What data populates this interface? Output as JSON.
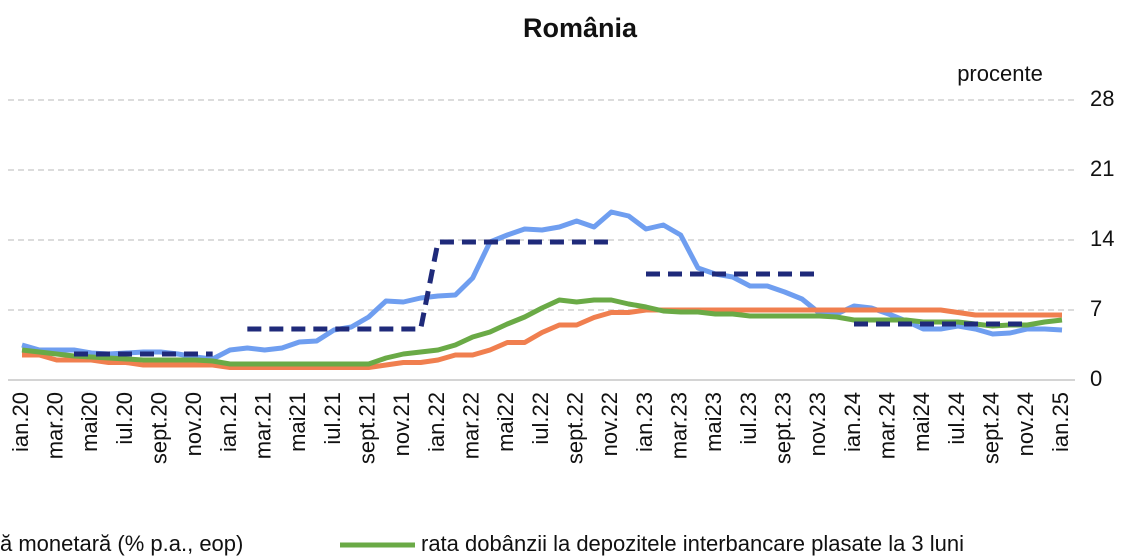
{
  "chart_data": {
    "type": "line",
    "title": "România",
    "unit_label": "procente",
    "categories": [
      "ian.20",
      null,
      "mar.20",
      null,
      "mai20",
      null,
      "iul.20",
      null,
      "sept.20",
      null,
      "nov.20",
      null,
      "ian.21",
      null,
      "mar.21",
      null,
      "mai21",
      null,
      "iul.21",
      null,
      "sept.21",
      null,
      "nov.21",
      null,
      "ian.22",
      null,
      "mar.22",
      null,
      "mai22",
      null,
      "iul.22",
      null,
      "sept.22",
      null,
      "nov.22",
      null,
      "ian.23",
      null,
      "mar.23",
      null,
      "mai23",
      null,
      "iul.23",
      null,
      "sept.23",
      null,
      "nov.23",
      null,
      "ian.24",
      null,
      "mar.24",
      null,
      "mai24",
      null,
      "iul.24",
      null,
      "sept.24",
      null,
      "nov.24",
      null,
      "ian.25"
    ],
    "series": [
      {
        "color": "#6f9ef0",
        "values": [
          3.5,
          3.0,
          3.0,
          3.0,
          2.7,
          2.6,
          2.7,
          2.8,
          2.8,
          2.6,
          2.3,
          2.1,
          3.0,
          3.2,
          3.0,
          3.2,
          3.8,
          3.9,
          5.0,
          5.3,
          6.3,
          7.9,
          7.8,
          8.2,
          8.4,
          8.5,
          10.2,
          13.8,
          14.5,
          15.1,
          15.0,
          15.3,
          15.9,
          15.3,
          16.8,
          16.4,
          15.1,
          15.5,
          14.5,
          11.2,
          10.6,
          10.3,
          9.4,
          9.4,
          8.8,
          8.1,
          6.7,
          6.6,
          7.4,
          7.2,
          6.6,
          5.9,
          5.1,
          5.1,
          5.4,
          5.1,
          4.6,
          4.7,
          5.1,
          5.1,
          5.0
        ]
      },
      {
        "name": "ă monetară (% p.a., eop)",
        "color": "#f07f4f",
        "values": [
          2.5,
          2.5,
          2.0,
          2.0,
          2.0,
          1.75,
          1.75,
          1.5,
          1.5,
          1.5,
          1.5,
          1.5,
          1.25,
          1.25,
          1.25,
          1.25,
          1.25,
          1.25,
          1.25,
          1.25,
          1.25,
          1.5,
          1.75,
          1.75,
          2.0,
          2.5,
          2.5,
          3.0,
          3.75,
          3.75,
          4.75,
          5.5,
          5.5,
          6.25,
          6.75,
          6.75,
          7,
          7,
          7,
          7,
          7,
          7,
          7,
          7,
          7,
          7,
          7,
          7,
          7,
          7,
          7,
          7,
          7,
          7,
          6.75,
          6.5,
          6.5,
          6.5,
          6.5,
          6.5,
          6.5
        ]
      },
      {
        "name": "rata dobânzii la depozitele interbancare plasate la 3 luni",
        "color": "#6aaa46",
        "values": [
          3.0,
          2.8,
          2.6,
          2.4,
          2.3,
          2.2,
          2.1,
          2.0,
          2.0,
          2.0,
          2.0,
          1.9,
          1.6,
          1.6,
          1.6,
          1.6,
          1.6,
          1.6,
          1.6,
          1.6,
          1.6,
          2.2,
          2.6,
          2.8,
          3.0,
          3.5,
          4.3,
          4.8,
          5.6,
          6.3,
          7.2,
          8.0,
          7.8,
          8.0,
          8.0,
          7.6,
          7.3,
          6.9,
          6.8,
          6.8,
          6.6,
          6.6,
          6.4,
          6.4,
          6.4,
          6.4,
          6.4,
          6.3,
          6.0,
          6.0,
          6.0,
          6.0,
          5.8,
          5.8,
          5.8,
          5.6,
          5.4,
          5.5,
          5.5,
          5.8,
          6.0
        ]
      },
      {
        "color": "#1f2a7a",
        "dashed": true,
        "values": [
          null,
          null,
          null,
          2.6,
          2.6,
          2.6,
          2.6,
          2.6,
          2.6,
          2.6,
          2.6,
          2.6,
          null,
          5.1,
          5.1,
          5.1,
          5.1,
          5.1,
          5.1,
          5.1,
          5.1,
          5.1,
          5.1,
          5.1,
          13.8,
          13.8,
          13.8,
          13.8,
          13.8,
          13.8,
          13.8,
          13.8,
          13.8,
          13.8,
          13.8,
          null,
          10.6,
          10.6,
          10.6,
          10.6,
          10.6,
          10.6,
          10.6,
          10.6,
          10.6,
          10.6,
          10.6,
          null,
          5.6,
          5.6,
          5.6,
          5.6,
          5.6,
          5.6,
          5.6,
          5.6,
          5.6,
          5.6,
          5.6,
          null,
          null
        ]
      }
    ],
    "ylim": [
      0,
      28
    ],
    "yticks": [
      0,
      7,
      14,
      21,
      28
    ],
    "grid": true
  }
}
